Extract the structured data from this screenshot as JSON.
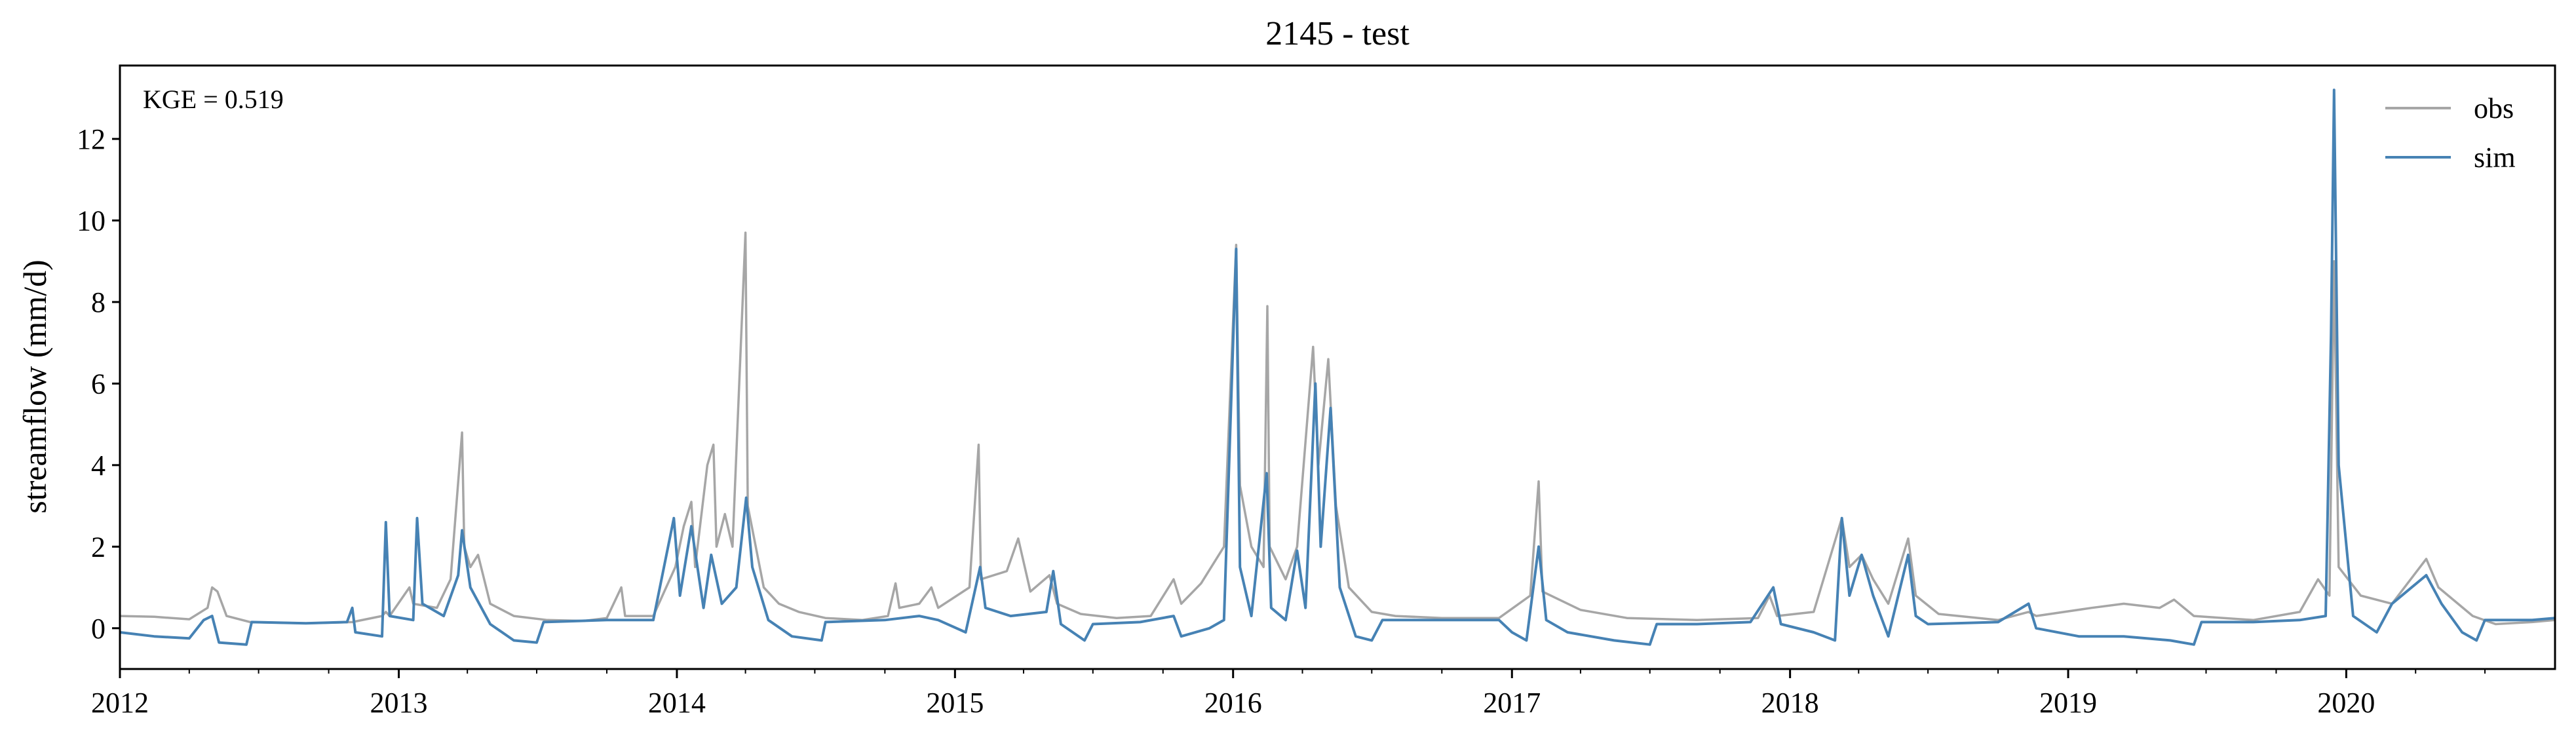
{
  "chart_data": {
    "type": "line",
    "title": "2145 - test",
    "xlabel": "",
    "ylabel": "streamflow (mm/d)",
    "annotation": "KGE = 0.519",
    "x_range": [
      "2012-01-01",
      "2020-10-01"
    ],
    "ylim": [
      -1,
      13.8
    ],
    "x_ticks": [
      "2012-01-01",
      "2013-01-01",
      "2014-01-01",
      "2015-01-01",
      "2016-01-01",
      "2017-01-01",
      "2018-01-01",
      "2019-01-01",
      "2020-01-01"
    ],
    "x_tick_labels": [
      "2012",
      "2013",
      "2014",
      "2015",
      "2016",
      "2017",
      "2018",
      "2019",
      "2020"
    ],
    "y_ticks": [
      0,
      2,
      4,
      6,
      8,
      10,
      12
    ],
    "y_tick_labels": [
      "0",
      "2",
      "4",
      "6",
      "8",
      "10",
      "12"
    ],
    "grid": false,
    "legend_position": "top-right",
    "series": [
      {
        "name": "obs",
        "color": "#a6a6a6",
        "points": [
          [
            "2012-01-01",
            0.3
          ],
          [
            "2012-02-15",
            0.28
          ],
          [
            "2012-04-01",
            0.22
          ],
          [
            "2012-04-25",
            0.5
          ],
          [
            "2012-05-01",
            1.0
          ],
          [
            "2012-05-08",
            0.9
          ],
          [
            "2012-05-20",
            0.3
          ],
          [
            "2012-06-20",
            0.15
          ],
          [
            "2012-09-01",
            0.12
          ],
          [
            "2012-11-01",
            0.15
          ],
          [
            "2012-12-10",
            0.3
          ],
          [
            "2012-12-15",
            0.4
          ],
          [
            "2012-12-20",
            0.3
          ],
          [
            "2013-01-15",
            1.0
          ],
          [
            "2013-01-20",
            0.6
          ],
          [
            "2013-02-20",
            0.5
          ],
          [
            "2013-03-10",
            1.2
          ],
          [
            "2013-03-25",
            4.8
          ],
          [
            "2013-03-28",
            2.0
          ],
          [
            "2013-04-05",
            1.5
          ],
          [
            "2013-04-15",
            1.8
          ],
          [
            "2013-05-01",
            0.6
          ],
          [
            "2013-06-01",
            0.3
          ],
          [
            "2013-07-15",
            0.2
          ],
          [
            "2013-09-01",
            0.18
          ],
          [
            "2013-10-01",
            0.25
          ],
          [
            "2013-10-20",
            1.0
          ],
          [
            "2013-10-25",
            0.3
          ],
          [
            "2013-12-01",
            0.3
          ],
          [
            "2013-12-30",
            1.5
          ],
          [
            "2014-01-10",
            2.5
          ],
          [
            "2014-01-20",
            3.1
          ],
          [
            "2014-01-25",
            1.5
          ],
          [
            "2014-02-10",
            4.0
          ],
          [
            "2014-02-18",
            4.5
          ],
          [
            "2014-02-22",
            2.0
          ],
          [
            "2014-03-05",
            2.8
          ],
          [
            "2014-03-15",
            2.0
          ],
          [
            "2014-04-01",
            9.7
          ],
          [
            "2014-04-04",
            3.0
          ],
          [
            "2014-04-25",
            1.0
          ],
          [
            "2014-05-15",
            0.6
          ],
          [
            "2014-06-10",
            0.4
          ],
          [
            "2014-07-15",
            0.25
          ],
          [
            "2014-09-01",
            0.2
          ],
          [
            "2014-10-05",
            0.3
          ],
          [
            "2014-10-15",
            1.1
          ],
          [
            "2014-10-20",
            0.5
          ],
          [
            "2014-11-15",
            0.6
          ],
          [
            "2014-12-01",
            1.0
          ],
          [
            "2014-12-10",
            0.5
          ],
          [
            "2015-01-20",
            1.0
          ],
          [
            "2015-02-01",
            4.5
          ],
          [
            "2015-02-04",
            1.2
          ],
          [
            "2015-03-10",
            1.4
          ],
          [
            "2015-03-25",
            2.2
          ],
          [
            "2015-04-10",
            0.9
          ],
          [
            "2015-05-05",
            1.3
          ],
          [
            "2015-05-15",
            0.6
          ],
          [
            "2015-06-15",
            0.35
          ],
          [
            "2015-08-01",
            0.25
          ],
          [
            "2015-09-15",
            0.3
          ],
          [
            "2015-10-15",
            1.2
          ],
          [
            "2015-10-25",
            0.6
          ],
          [
            "2015-11-20",
            1.1
          ],
          [
            "2015-12-20",
            2.0
          ],
          [
            "2016-01-05",
            9.4
          ],
          [
            "2016-01-10",
            3.5
          ],
          [
            "2016-01-25",
            2.0
          ],
          [
            "2016-02-10",
            1.5
          ],
          [
            "2016-02-15",
            7.9
          ],
          [
            "2016-02-18",
            2.0
          ],
          [
            "2016-03-10",
            1.2
          ],
          [
            "2016-03-25",
            2.0
          ],
          [
            "2016-04-15",
            6.9
          ],
          [
            "2016-04-22",
            4.0
          ],
          [
            "2016-05-05",
            6.6
          ],
          [
            "2016-05-15",
            3.0
          ],
          [
            "2016-06-01",
            1.0
          ],
          [
            "2016-07-01",
            0.4
          ],
          [
            "2016-08-01",
            0.3
          ],
          [
            "2016-10-01",
            0.25
          ],
          [
            "2016-12-15",
            0.25
          ],
          [
            "2017-01-25",
            0.8
          ],
          [
            "2017-02-05",
            3.6
          ],
          [
            "2017-02-10",
            0.9
          ],
          [
            "2017-04-01",
            0.45
          ],
          [
            "2017-06-01",
            0.25
          ],
          [
            "2017-09-01",
            0.2
          ],
          [
            "2017-11-20",
            0.25
          ],
          [
            "2017-12-05",
            0.8
          ],
          [
            "2017-12-15",
            0.3
          ],
          [
            "2018-02-01",
            0.4
          ],
          [
            "2018-03-10",
            2.7
          ],
          [
            "2018-03-20",
            1.5
          ],
          [
            "2018-04-05",
            1.8
          ],
          [
            "2018-04-20",
            1.2
          ],
          [
            "2018-05-10",
            0.6
          ],
          [
            "2018-06-05",
            2.2
          ],
          [
            "2018-06-15",
            0.8
          ],
          [
            "2018-07-15",
            0.35
          ],
          [
            "2018-10-01",
            0.2
          ],
          [
            "2018-11-10",
            0.4
          ],
          [
            "2018-11-20",
            0.3
          ],
          [
            "2019-02-01",
            0.5
          ],
          [
            "2019-03-15",
            0.6
          ],
          [
            "2019-05-01",
            0.5
          ],
          [
            "2019-05-20",
            0.7
          ],
          [
            "2019-06-15",
            0.3
          ],
          [
            "2019-09-01",
            0.2
          ],
          [
            "2019-11-01",
            0.4
          ],
          [
            "2019-11-25",
            1.2
          ],
          [
            "2019-12-10",
            0.8
          ],
          [
            "2019-12-16",
            9.0
          ],
          [
            "2019-12-22",
            1.5
          ],
          [
            "2020-01-20",
            0.8
          ],
          [
            "2020-03-01",
            0.6
          ],
          [
            "2020-04-15",
            1.7
          ],
          [
            "2020-05-01",
            1.0
          ],
          [
            "2020-06-15",
            0.3
          ],
          [
            "2020-07-15",
            0.1
          ],
          [
            "2020-09-01",
            0.15
          ],
          [
            "2020-10-01",
            0.2
          ]
        ]
      },
      {
        "name": "sim",
        "color": "#4682b4",
        "points": [
          [
            "2012-01-01",
            -0.1
          ],
          [
            "2012-02-15",
            -0.2
          ],
          [
            "2012-04-01",
            -0.25
          ],
          [
            "2012-04-20",
            0.2
          ],
          [
            "2012-05-01",
            0.3
          ],
          [
            "2012-05-10",
            -0.35
          ],
          [
            "2012-06-15",
            -0.4
          ],
          [
            "2012-06-22",
            0.15
          ],
          [
            "2012-09-01",
            0.12
          ],
          [
            "2012-10-25",
            0.15
          ],
          [
            "2012-11-01",
            0.5
          ],
          [
            "2012-11-05",
            -0.1
          ],
          [
            "2012-12-10",
            -0.2
          ],
          [
            "2012-12-15",
            2.6
          ],
          [
            "2012-12-20",
            0.3
          ],
          [
            "2013-01-20",
            0.2
          ],
          [
            "2013-01-25",
            2.7
          ],
          [
            "2013-02-01",
            0.6
          ],
          [
            "2013-03-01",
            0.3
          ],
          [
            "2013-03-20",
            1.3
          ],
          [
            "2013-03-25",
            2.4
          ],
          [
            "2013-04-05",
            1.0
          ],
          [
            "2013-05-01",
            0.1
          ],
          [
            "2013-06-01",
            -0.3
          ],
          [
            "2013-07-01",
            -0.35
          ],
          [
            "2013-07-10",
            0.15
          ],
          [
            "2013-10-01",
            0.2
          ],
          [
            "2013-12-01",
            0.2
          ],
          [
            "2013-12-28",
            2.7
          ],
          [
            "2014-01-05",
            0.8
          ],
          [
            "2014-01-20",
            2.5
          ],
          [
            "2014-02-05",
            0.5
          ],
          [
            "2014-02-15",
            1.8
          ],
          [
            "2014-03-01",
            0.6
          ],
          [
            "2014-03-20",
            1.0
          ],
          [
            "2014-04-02",
            3.2
          ],
          [
            "2014-04-10",
            1.5
          ],
          [
            "2014-05-01",
            0.2
          ],
          [
            "2014-06-01",
            -0.2
          ],
          [
            "2014-07-10",
            -0.3
          ],
          [
            "2014-07-15",
            0.15
          ],
          [
            "2014-10-01",
            0.2
          ],
          [
            "2014-11-15",
            0.3
          ],
          [
            "2014-12-10",
            0.2
          ],
          [
            "2015-01-15",
            -0.1
          ],
          [
            "2015-02-03",
            1.5
          ],
          [
            "2015-02-10",
            0.5
          ],
          [
            "2015-03-15",
            0.3
          ],
          [
            "2015-05-01",
            0.4
          ],
          [
            "2015-05-10",
            1.4
          ],
          [
            "2015-05-20",
            0.1
          ],
          [
            "2015-06-20",
            -0.3
          ],
          [
            "2015-07-01",
            0.1
          ],
          [
            "2015-09-01",
            0.15
          ],
          [
            "2015-10-15",
            0.3
          ],
          [
            "2015-10-25",
            -0.2
          ],
          [
            "2015-12-01",
            0.0
          ],
          [
            "2015-12-20",
            0.2
          ],
          [
            "2016-01-05",
            9.3
          ],
          [
            "2016-01-10",
            1.5
          ],
          [
            "2016-01-25",
            0.3
          ],
          [
            "2016-02-14",
            3.8
          ],
          [
            "2016-02-20",
            0.5
          ],
          [
            "2016-03-10",
            0.2
          ],
          [
            "2016-03-25",
            1.9
          ],
          [
            "2016-04-05",
            0.5
          ],
          [
            "2016-04-18",
            6.0
          ],
          [
            "2016-04-25",
            2.0
          ],
          [
            "2016-05-08",
            5.4
          ],
          [
            "2016-05-20",
            1.0
          ],
          [
            "2016-06-10",
            -0.2
          ],
          [
            "2016-07-01",
            -0.3
          ],
          [
            "2016-07-15",
            0.2
          ],
          [
            "2016-10-01",
            0.2
          ],
          [
            "2016-12-15",
            0.2
          ],
          [
            "2017-01-01",
            -0.1
          ],
          [
            "2017-01-20",
            -0.3
          ],
          [
            "2017-02-05",
            2.0
          ],
          [
            "2017-02-15",
            0.2
          ],
          [
            "2017-03-15",
            -0.1
          ],
          [
            "2017-05-15",
            -0.3
          ],
          [
            "2017-07-01",
            -0.4
          ],
          [
            "2017-07-10",
            0.1
          ],
          [
            "2017-09-01",
            0.1
          ],
          [
            "2017-11-10",
            0.15
          ],
          [
            "2017-12-10",
            1.0
          ],
          [
            "2017-12-20",
            0.1
          ],
          [
            "2018-02-01",
            -0.1
          ],
          [
            "2018-03-01",
            -0.3
          ],
          [
            "2018-03-10",
            2.7
          ],
          [
            "2018-03-20",
            0.8
          ],
          [
            "2018-04-05",
            1.8
          ],
          [
            "2018-04-20",
            0.8
          ],
          [
            "2018-05-10",
            -0.2
          ],
          [
            "2018-06-05",
            1.8
          ],
          [
            "2018-06-15",
            0.3
          ],
          [
            "2018-07-01",
            0.1
          ],
          [
            "2018-10-01",
            0.15
          ],
          [
            "2018-11-10",
            0.6
          ],
          [
            "2018-11-20",
            0.0
          ],
          [
            "2019-01-15",
            -0.2
          ],
          [
            "2019-03-15",
            -0.2
          ],
          [
            "2019-05-15",
            -0.3
          ],
          [
            "2019-06-15",
            -0.4
          ],
          [
            "2019-06-25",
            0.15
          ],
          [
            "2019-09-01",
            0.15
          ],
          [
            "2019-11-01",
            0.2
          ],
          [
            "2019-12-05",
            0.3
          ],
          [
            "2019-12-12",
            7.2
          ],
          [
            "2019-12-16",
            13.2
          ],
          [
            "2019-12-22",
            4.0
          ],
          [
            "2020-01-10",
            0.3
          ],
          [
            "2020-02-10",
            -0.1
          ],
          [
            "2020-03-01",
            0.6
          ],
          [
            "2020-04-15",
            1.3
          ],
          [
            "2020-05-05",
            0.6
          ],
          [
            "2020-06-01",
            -0.1
          ],
          [
            "2020-06-20",
            -0.3
          ],
          [
            "2020-07-01",
            0.2
          ],
          [
            "2020-09-01",
            0.2
          ],
          [
            "2020-10-01",
            0.25
          ]
        ]
      }
    ]
  }
}
